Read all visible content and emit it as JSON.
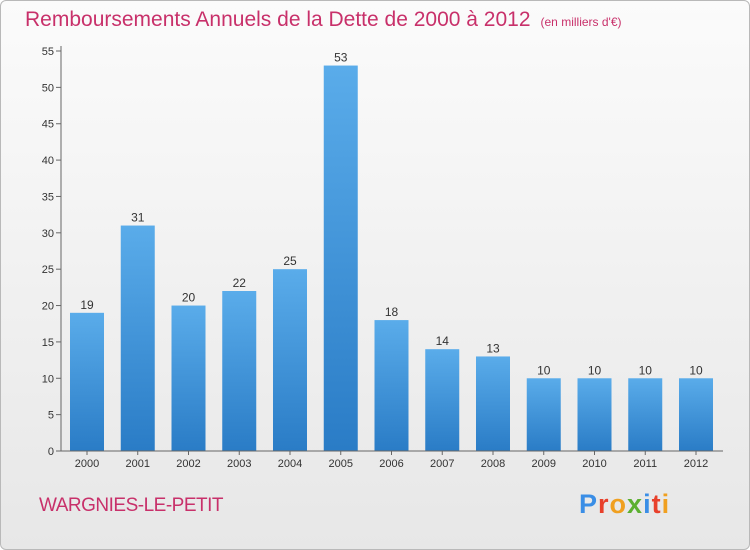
{
  "header": {
    "title": "Remboursements Annuels de la Dette de 2000 à 2012",
    "subtitle": "(en milliers d'€)"
  },
  "footer": {
    "commune": "WARGNIES-LE-PETIT",
    "logo": [
      "P",
      "r",
      "o",
      "x",
      "i",
      "t",
      "i"
    ],
    "logo_colors": [
      "#3a8ee6",
      "#e8402b",
      "#f0a020",
      "#5cb030",
      "#3a8ee6",
      "#e8402b",
      "#f0a020"
    ]
  },
  "chart_data": {
    "type": "bar",
    "title": "Remboursements Annuels de la Dette de 2000 à 2012",
    "subtitle": "(en milliers d'€)",
    "categories": [
      "2000",
      "2001",
      "2002",
      "2003",
      "2004",
      "2005",
      "2006",
      "2007",
      "2008",
      "2009",
      "2010",
      "2011",
      "2012"
    ],
    "values": [
      19,
      31,
      20,
      22,
      25,
      53,
      18,
      14,
      13,
      10,
      10,
      10,
      10
    ],
    "ylim": [
      0,
      55
    ],
    "yticks": [
      0,
      5,
      10,
      15,
      20,
      25,
      30,
      35,
      40,
      45,
      50,
      55
    ],
    "grid": false,
    "bar_color": "#4a9fe0"
  }
}
